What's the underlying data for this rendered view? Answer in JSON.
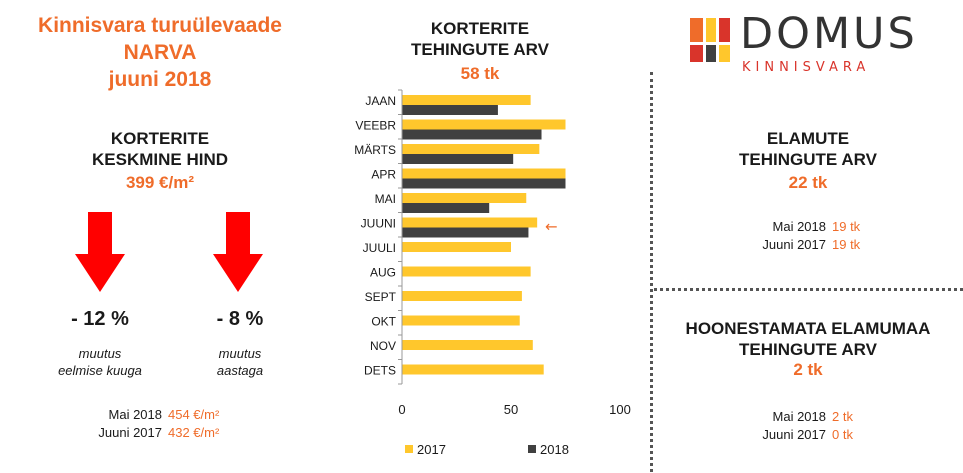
{
  "header": {
    "title_line1": "Kinnisvara turuülevaade",
    "title_line2": "NARVA",
    "title_line3": "juuni 2018"
  },
  "avg_price": {
    "title_line1": "KORTERITE",
    "title_line2": "KESKMINE HIND",
    "value": "399 €/m²",
    "change1": {
      "value": "- 12 %",
      "desc_line1": "muutus",
      "desc_line2": "eelmise kuuga"
    },
    "change2": {
      "value": "- 8 %",
      "desc_line1": "muutus",
      "desc_line2": "aastaga"
    },
    "compare": [
      {
        "label": "Mai 2018",
        "value": "454 €/m²"
      },
      {
        "label": "Juuni 2017",
        "value": "432 €/m²"
      }
    ],
    "arrow_color": "#ff0000"
  },
  "chart_header": {
    "title_line1": "KORTERITE",
    "title_line2": "TEHINGUTE ARV",
    "total": "58 tk"
  },
  "logo": {
    "main": "DOMUS",
    "sub": "KINNISVARA"
  },
  "houses": {
    "title_line1": "ELAMUTE",
    "title_line2": "TEHINGUTE ARV",
    "value": "22 tk",
    "compare": [
      {
        "label": "Mai 2018",
        "value": "19 tk"
      },
      {
        "label": "Juuni 2017",
        "value": "19 tk"
      }
    ]
  },
  "land": {
    "title_line1": "HOONESTAMATA ELAMUMAA",
    "title_line2": "TEHINGUTE ARV",
    "value": "2 tk",
    "compare": [
      {
        "label": "Mai 2018",
        "value": "2 tk"
      },
      {
        "label": "Juuni 2017",
        "value": "0 tk"
      }
    ]
  },
  "colors": {
    "accent": "#ef6c2a",
    "series_2017": "#ffc72c",
    "series_2018": "#404040"
  },
  "chart_data": {
    "type": "bar",
    "orientation": "horizontal",
    "categories": [
      "JAAN",
      "VEEBR",
      "MÄRTS",
      "APR",
      "MAI",
      "JUUNI",
      "JUULI",
      "AUG",
      "SEPT",
      "OKT",
      "NOV",
      "DETS"
    ],
    "series": [
      {
        "name": "2017",
        "values": [
          59,
          75,
          63,
          75,
          57,
          62,
          50,
          59,
          55,
          54,
          60,
          65
        ]
      },
      {
        "name": "2018",
        "values": [
          44,
          64,
          51,
          75,
          40,
          58,
          null,
          null,
          null,
          null,
          null,
          null
        ]
      }
    ],
    "xlim": [
      0,
      100
    ],
    "xticks": [
      "0",
      "50",
      "100"
    ],
    "grid": false,
    "legend": "bottom",
    "highlight_category": "JUUNI",
    "highlight_marker": "←"
  }
}
